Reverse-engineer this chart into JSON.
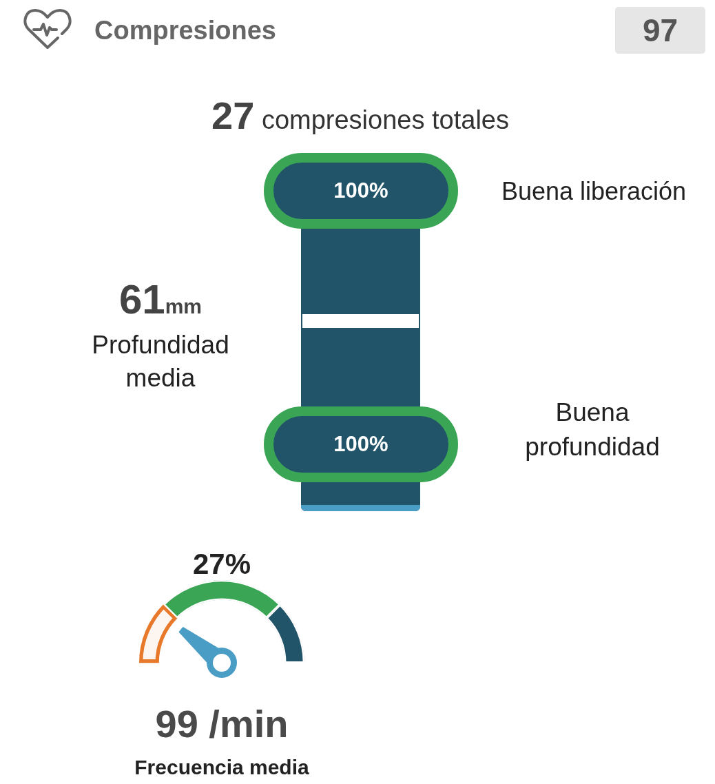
{
  "chart_data": [
    {
      "type": "other",
      "title": "Compresiones",
      "annotations": [
        "97",
        "27 compresiones totales",
        "100%",
        "Buena liberación",
        "61mm",
        "Profundidad media",
        "100%",
        "Buena profundidad"
      ]
    },
    {
      "type": "donut",
      "categories": [
        null,
        null,
        null
      ],
      "values": [
        25,
        50,
        25
      ],
      "colors": [
        "#e8792a",
        "#3aa655",
        "#215469"
      ],
      "annotations": [
        "27%",
        "99 /min",
        "Frecuencia media"
      ]
    }
  ]
}
